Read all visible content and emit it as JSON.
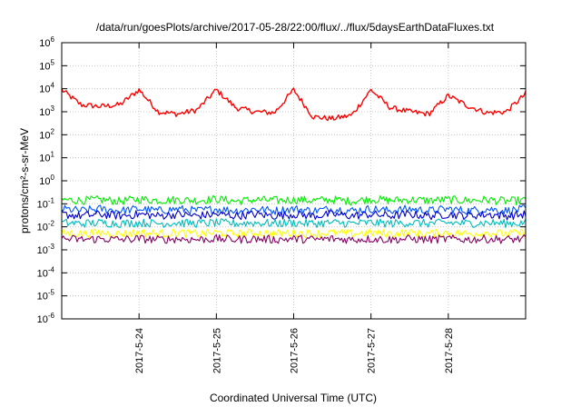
{
  "chart_data": {
    "type": "line",
    "title": "/data/run/goesPlots/archive/2017-05-28/22:00/flux/../flux/5daysEarthDataFluxes.txt",
    "xlabel": "Coordinated Universal Time (UTC)",
    "ylabel": "protons/cm²-s-sr-MeV",
    "yscale": "log",
    "ylim": [
      1e-06,
      1000000.0
    ],
    "xlim": [
      "2017-05-23 00:00",
      "2017-05-29 00:00"
    ],
    "x_ticks": [
      "2017-5-24",
      "2017-5-25",
      "2017-5-26",
      "2017-5-27",
      "2017-5-28"
    ],
    "y_tick_exponents": [
      -6,
      -5,
      -4,
      -3,
      -2,
      -1,
      0,
      1,
      2,
      3,
      4,
      5,
      6
    ],
    "grid": true,
    "x": [
      "2017-05-23 00:00",
      "2017-05-23 06:00",
      "2017-05-23 12:00",
      "2017-05-23 18:00",
      "2017-05-24 00:00",
      "2017-05-24 06:00",
      "2017-05-24 12:00",
      "2017-05-24 18:00",
      "2017-05-25 00:00",
      "2017-05-25 06:00",
      "2017-05-25 12:00",
      "2017-05-25 18:00",
      "2017-05-26 00:00",
      "2017-05-26 06:00",
      "2017-05-26 12:00",
      "2017-05-26 18:00",
      "2017-05-27 00:00",
      "2017-05-27 06:00",
      "2017-05-27 12:00",
      "2017-05-27 18:00",
      "2017-05-28 00:00",
      "2017-05-28 06:00",
      "2017-05-28 12:00",
      "2017-05-28 18:00",
      "2017-05-29 00:00"
    ],
    "series": [
      {
        "color": "#ff0000",
        "values": [
          9000,
          2000,
          1700,
          2000,
          9000,
          1000,
          800,
          1200,
          9000,
          1500,
          1000,
          900,
          9000,
          600,
          500,
          700,
          9000,
          1500,
          1000,
          800,
          5000,
          1800,
          900,
          1000,
          6000
        ]
      },
      {
        "color": "#00ee00",
        "values": [
          0.15,
          0.14,
          0.15,
          0.13,
          0.16,
          0.14,
          0.15,
          0.14,
          0.16,
          0.13,
          0.15,
          0.14,
          0.15,
          0.14,
          0.15,
          0.13,
          0.16,
          0.14,
          0.15,
          0.14,
          0.15,
          0.14,
          0.15,
          0.13,
          0.14
        ]
      },
      {
        "color": "#0055ff",
        "values": [
          0.06,
          0.05,
          0.06,
          0.05,
          0.06,
          0.05,
          0.06,
          0.05,
          0.06,
          0.05,
          0.06,
          0.05,
          0.06,
          0.05,
          0.06,
          0.05,
          0.06,
          0.05,
          0.06,
          0.05,
          0.06,
          0.05,
          0.06,
          0.05,
          0.06
        ]
      },
      {
        "color": "#0000cc",
        "values": [
          0.035,
          0.03,
          0.035,
          0.03,
          0.035,
          0.03,
          0.035,
          0.03,
          0.035,
          0.03,
          0.035,
          0.03,
          0.035,
          0.03,
          0.035,
          0.03,
          0.035,
          0.03,
          0.035,
          0.03,
          0.035,
          0.03,
          0.035,
          0.03,
          0.035
        ]
      },
      {
        "color": "#00bbbb",
        "values": [
          0.015,
          0.014,
          0.015,
          0.014,
          0.015,
          0.014,
          0.015,
          0.014,
          0.015,
          0.014,
          0.015,
          0.014,
          0.015,
          0.014,
          0.015,
          0.014,
          0.015,
          0.014,
          0.015,
          0.014,
          0.015,
          0.014,
          0.015,
          0.014,
          0.015
        ]
      },
      {
        "color": "#ffff00",
        "values": [
          0.0055,
          0.005,
          0.0055,
          0.005,
          0.0055,
          0.005,
          0.0055,
          0.005,
          0.0055,
          0.005,
          0.0055,
          0.005,
          0.0055,
          0.005,
          0.0055,
          0.005,
          0.0055,
          0.005,
          0.0055,
          0.005,
          0.0055,
          0.005,
          0.0055,
          0.005,
          0.0055
        ]
      },
      {
        "color": "#880066",
        "values": [
          0.003,
          0.0028,
          0.003,
          0.0028,
          0.003,
          0.0028,
          0.003,
          0.0028,
          0.003,
          0.0028,
          0.003,
          0.0028,
          0.003,
          0.0028,
          0.003,
          0.0028,
          0.003,
          0.0028,
          0.003,
          0.0028,
          0.003,
          0.0028,
          0.003,
          0.0028,
          0.003
        ]
      }
    ]
  }
}
